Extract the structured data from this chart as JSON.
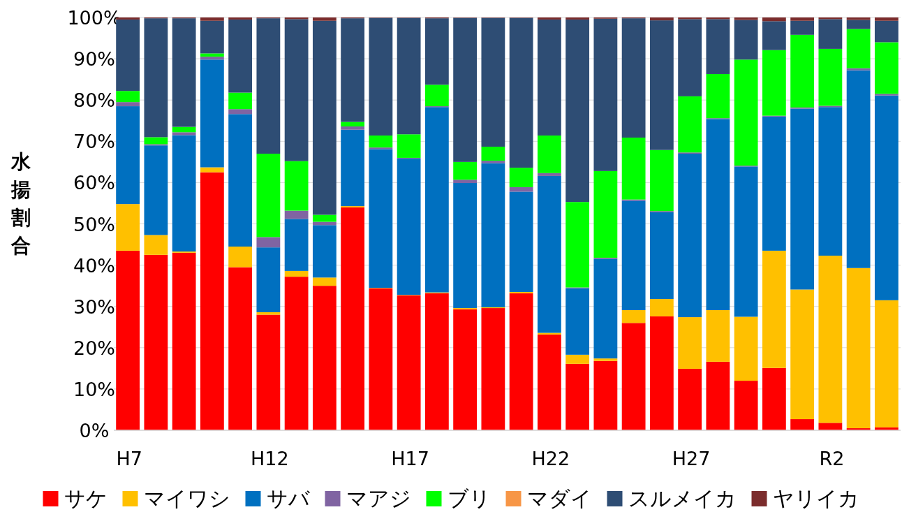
{
  "chart_data": {
    "type": "bar",
    "stacked": true,
    "ylabel": "水揚割合",
    "categories": [
      "H7",
      null,
      null,
      null,
      null,
      "H12",
      null,
      null,
      null,
      null,
      "H17",
      null,
      null,
      null,
      null,
      "H22",
      null,
      null,
      null,
      null,
      "H27",
      null,
      null,
      null,
      null,
      "R2",
      null,
      null
    ],
    "series": [
      {
        "name": "サケ",
        "color": "#ff0000",
        "values": [
          43.5,
          42.5,
          43,
          62.5,
          39.5,
          28,
          37.2,
          35,
          54,
          34.4,
          32.7,
          33.2,
          29.3,
          29.6,
          33.2,
          23.2,
          16.1,
          16.8,
          26.0,
          27.6,
          14.9,
          16.6,
          12.0,
          15.1,
          2.7,
          1.8,
          0.5,
          0.7
        ]
      },
      {
        "name": "マイワシ",
        "color": "#ffc000",
        "values": [
          11.3,
          4.8,
          0.3,
          1.2,
          5.0,
          0.6,
          1.4,
          2.0,
          0.3,
          0.1,
          0.1,
          0.2,
          0.3,
          0.2,
          0.3,
          0.4,
          2.2,
          0.6,
          3.1,
          4.2,
          12.5,
          12.5,
          15.5,
          28.4,
          31.4,
          40.5,
          38.8,
          30.8
        ]
      },
      {
        "name": "サバ",
        "color": "#0070c0",
        "values": [
          23.7,
          21.7,
          28.2,
          26.1,
          32.1,
          15.7,
          12.6,
          12.7,
          18.5,
          33.6,
          33.0,
          44.9,
          30.3,
          34.9,
          24.3,
          38.0,
          16.1,
          24.1,
          26.5,
          21.0,
          39.6,
          46.3,
          36.4,
          32.5,
          43.8,
          36.0,
          47.9,
          49.6
        ]
      },
      {
        "name": "マアジ",
        "color": "#8064a2",
        "values": [
          1.0,
          0.3,
          0.7,
          0.7,
          1.2,
          2.5,
          2.0,
          0.8,
          0.8,
          0.4,
          0.2,
          0.2,
          0.8,
          0.6,
          1.1,
          0.7,
          0.2,
          0.3,
          0.3,
          0.3,
          0.3,
          0.2,
          0.2,
          0.2,
          0.3,
          0.3,
          0.5,
          0.4
        ]
      },
      {
        "name": "ブリ",
        "color": "#00ff00",
        "values": [
          2.7,
          1.7,
          1.3,
          0.8,
          4.0,
          20.2,
          12.0,
          1.7,
          1.1,
          2.9,
          5.7,
          5.2,
          4.3,
          3.4,
          4.7,
          9.1,
          20.7,
          21.0,
          15.0,
          14.8,
          13.6,
          10.7,
          25.7,
          15.9,
          17.6,
          13.8,
          9.5,
          12.5
        ]
      },
      {
        "name": "マダイ",
        "color": "#f79646",
        "values": [
          null,
          null,
          null,
          null,
          null,
          null,
          null,
          null,
          null,
          null,
          null,
          null,
          null,
          null,
          null,
          null,
          null,
          null,
          null,
          null,
          null,
          null,
          null,
          null,
          null,
          null,
          null,
          null
        ]
      },
      {
        "name": "スルメイカ",
        "color": "#2e4d74",
        "values": [
          17.3,
          28.8,
          26.3,
          7.9,
          17.7,
          32.8,
          34.4,
          47.0,
          25.1,
          28.5,
          28.2,
          16.1,
          34.9,
          31.2,
          36.3,
          28.1,
          44.2,
          36.9,
          28.9,
          31.4,
          18.7,
          13.3,
          9.6,
          7.0,
          3.4,
          7.2,
          2.2,
          5.2
        ]
      },
      {
        "name": "ヤリイカ",
        "color": "#7b2c2c",
        "values": [
          0.5,
          0.2,
          0.2,
          0.8,
          0.5,
          0.2,
          0.4,
          0.8,
          0.2,
          0.1,
          0.1,
          0.2,
          0.1,
          0.1,
          0.1,
          0.5,
          0.5,
          0.3,
          0.2,
          0.7,
          0.4,
          0.4,
          0.6,
          0.9,
          0.8,
          0.4,
          0.6,
          0.8
        ]
      }
    ],
    "ylim": [
      0,
      100
    ],
    "yticks": [
      {
        "value": 0,
        "label": "0%"
      },
      {
        "value": 10,
        "label": "10%"
      },
      {
        "value": 20,
        "label": "20%"
      },
      {
        "value": 30,
        "label": "30%"
      },
      {
        "value": 40,
        "label": "40%"
      },
      {
        "value": 50,
        "label": "50%"
      },
      {
        "value": 60,
        "label": "60%"
      },
      {
        "value": 70,
        "label": "70%"
      },
      {
        "value": 80,
        "label": "80%"
      },
      {
        "value": 90,
        "label": "90%"
      },
      {
        "value": 100,
        "label": "100%"
      }
    ],
    "grid": "y",
    "legend": "bottom"
  }
}
